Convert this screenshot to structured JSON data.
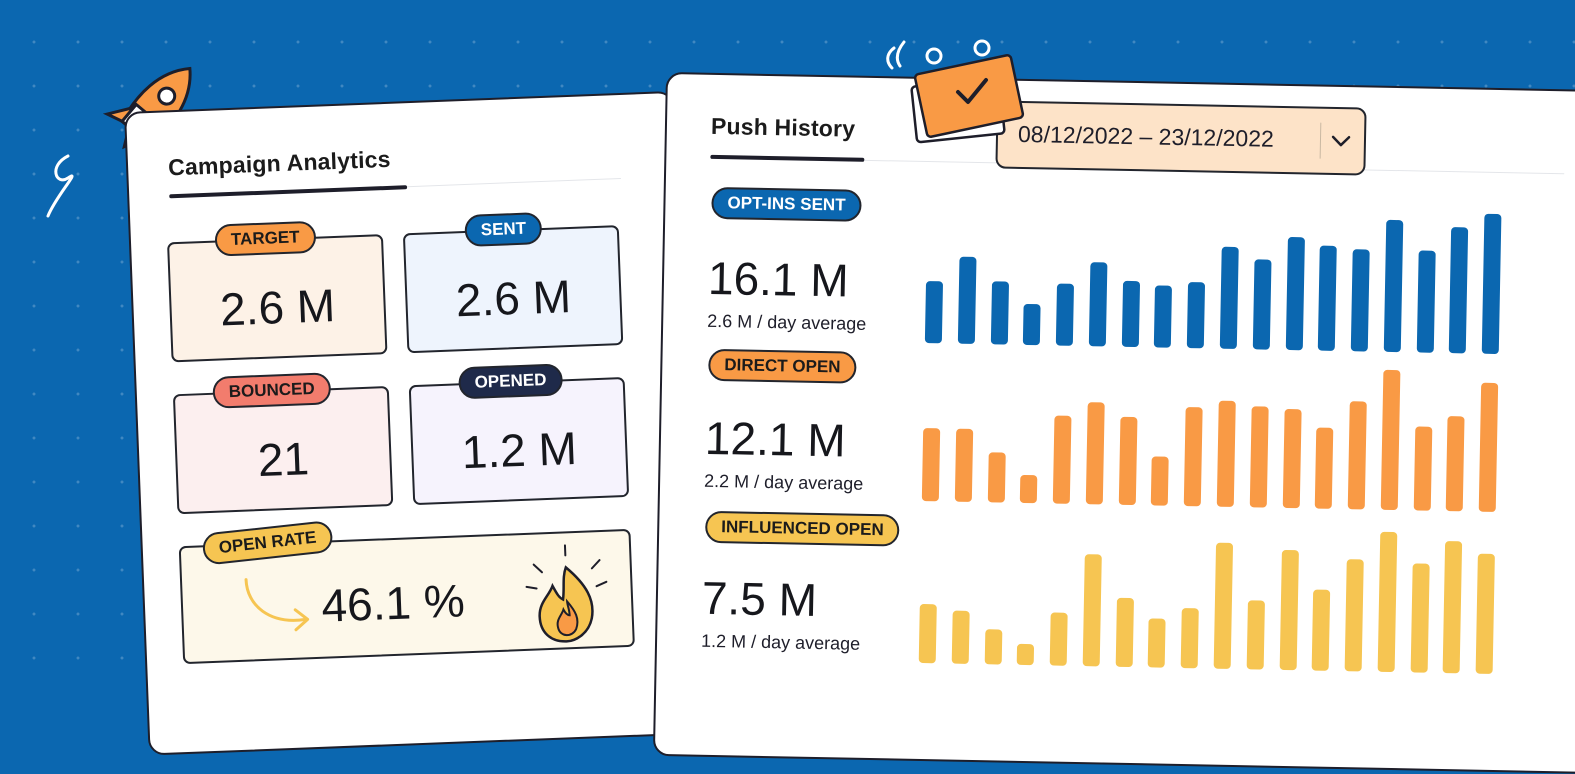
{
  "campaign_analytics": {
    "title": "Campaign Analytics",
    "cards": {
      "target": {
        "label": "TARGET",
        "value": "2.6 M"
      },
      "sent": {
        "label": "SENT",
        "value": "2.6 M"
      },
      "bounced": {
        "label": "BOUNCED",
        "value": "21"
      },
      "opened": {
        "label": "OPENED",
        "value": "1.2 M"
      },
      "open_rate": {
        "label": "OPEN RATE",
        "value": "46.1 %"
      }
    }
  },
  "push_history": {
    "title": "Push History",
    "date_range": "08/12/2022  –  23/12/2022",
    "metrics": [
      {
        "label": "OPT-INS SENT",
        "value": "16.1 M",
        "sub": "2.6 M / day average",
        "color": "#0b67b0",
        "bars": [
          0.44,
          0.62,
          0.45,
          0.29,
          0.44,
          0.6,
          0.47,
          0.44,
          0.47,
          0.73,
          0.64,
          0.81,
          0.75,
          0.73,
          0.94,
          0.73,
          0.9,
          1.0
        ]
      },
      {
        "label": "DIRECT OPEN",
        "value": "12.1 M",
        "sub": "2.2 M / day average",
        "color": "#f99a45",
        "bars": [
          0.52,
          0.52,
          0.36,
          0.2,
          0.63,
          0.73,
          0.63,
          0.35,
          0.71,
          0.76,
          0.72,
          0.71,
          0.58,
          0.77,
          1.0,
          0.6,
          0.68,
          0.92
        ]
      },
      {
        "label": "INFLUENCED OPEN",
        "value": "7.5 M",
        "sub": "1.2 M / day average",
        "color": "#f6c552",
        "bars": [
          0.42,
          0.38,
          0.25,
          0.15,
          0.38,
          0.8,
          0.49,
          0.35,
          0.43,
          0.9,
          0.49,
          0.86,
          0.58,
          0.8,
          1.0,
          0.78,
          0.94,
          0.86
        ]
      }
    ]
  },
  "colors": {
    "background": "#0b67b0",
    "orange": "#f99a45",
    "yellow": "#f6c552",
    "salmon": "#f27c6d",
    "navy": "#1f2a4a"
  }
}
